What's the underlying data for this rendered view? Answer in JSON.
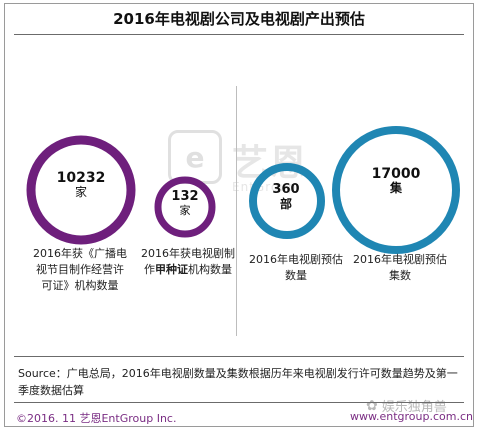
{
  "title": "2016年电视剧公司及电视剧产出预估",
  "chart_data": {
    "type": "bubble",
    "title": "2016年电视剧公司及电视剧产出预估",
    "groups": [
      {
        "name": "companies",
        "color": "#6e1f7c",
        "items": [
          {
            "value": 10232,
            "unit": "家",
            "label_lines": [
              "2016年获《广播电",
              "视节目制作经营许",
              "可证》机构数量"
            ]
          },
          {
            "value": 132,
            "unit": "家",
            "label_lines": [
              "2016年获电视剧制",
              "作甲种证机构数量"
            ]
          }
        ]
      },
      {
        "name": "output",
        "color": "#1f86b3",
        "items": [
          {
            "value": 360,
            "unit": "部",
            "label_lines": [
              "2016年电视剧预估",
              "数量"
            ]
          },
          {
            "value": 17000,
            "unit": "集",
            "label_lines": [
              "2016年电视剧预估",
              "集数"
            ]
          }
        ]
      }
    ]
  },
  "watermark": {
    "brand": "艺恩",
    "box_glyph": "e",
    "sub": "EntGroup"
  },
  "caption_emphasis": "甲种证",
  "source": "Source：广电总局，2016年电视剧数量及集数根据历年来电视剧发行许可数量趋势及第一季度数据估算",
  "footer": {
    "copyright": "©2016. 11 艺恩EntGroup Inc.",
    "url": "www.entgroup.com.cn",
    "wechat": "娱乐独角兽"
  },
  "icons": {
    "wechat": "wechat-icon"
  }
}
